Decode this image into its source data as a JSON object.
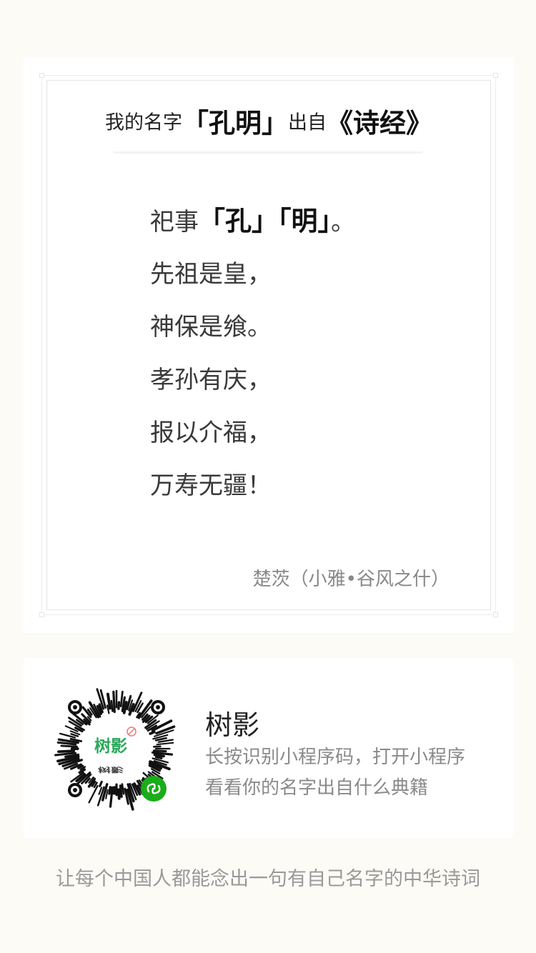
{
  "card": {
    "title": {
      "prefix": "我的名字",
      "name": "「孔明」",
      "middle": "出自",
      "book": "《诗经》"
    },
    "poem": {
      "first_line": {
        "before": "祀事",
        "hl1": "「孔」",
        "hl2": "「明」",
        "after": "。"
      },
      "lines": [
        "先祖是皇，",
        "神保是飨。",
        "孝孙有庆，",
        "报以介福，",
        "万寿无疆！"
      ]
    },
    "source": "楚茨（小雅•谷风之什）"
  },
  "promo": {
    "qr_brand": "树影",
    "app_name": "树影",
    "desc_line1": "长按识别小程序码，打开小程序",
    "desc_line2": "看看你的名字出自什么典籍"
  },
  "footer": "让每个中国人都能念出一句有自己名字的中华诗词",
  "colors": {
    "page_bg": "#fcfbf6",
    "card_bg": "#ffffff",
    "miniprogram_green": "#1aad19"
  }
}
